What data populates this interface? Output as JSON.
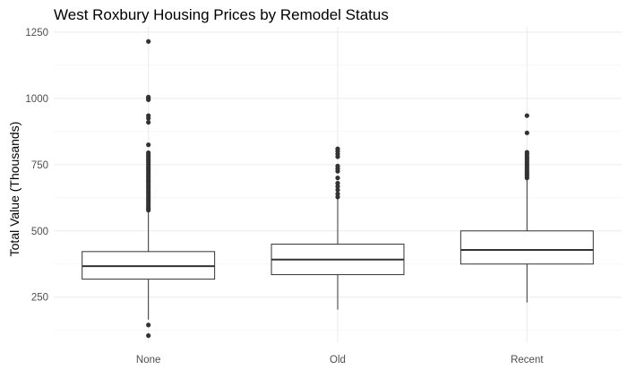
{
  "chart_data": {
    "type": "boxplot",
    "title": "West Roxbury Housing Prices by Remodel Status",
    "xlabel": "",
    "ylabel": "Total Value (Thousands)",
    "ylim": [
      80,
      1270
    ],
    "yticks": [
      250,
      500,
      750,
      1000,
      1250
    ],
    "grid": true,
    "legend": "none",
    "categories": [
      "None",
      "Old",
      "Recent"
    ],
    "boxes": [
      {
        "category": "None",
        "whisker_low": 165,
        "q1": 318,
        "median": 367,
        "q3": 422,
        "whisker_high": 574,
        "outliers": [
          105,
          145,
          578,
          585,
          592,
          600,
          608,
          615,
          622,
          630,
          638,
          645,
          652,
          660,
          668,
          675,
          683,
          690,
          697,
          705,
          712,
          720,
          728,
          735,
          742,
          750,
          758,
          765,
          772,
          780,
          787,
          795,
          825,
          910,
          925,
          935,
          995,
          1000,
          1005,
          1215
        ]
      },
      {
        "category": "Old",
        "whisker_low": 203,
        "q1": 335,
        "median": 392,
        "q3": 450,
        "whisker_high": 622,
        "outliers": [
          628,
          640,
          655,
          668,
          680,
          700,
          725,
          735,
          745,
          780,
          790,
          800,
          810
        ]
      },
      {
        "category": "Recent",
        "whisker_low": 230,
        "q1": 375,
        "median": 428,
        "q3": 500,
        "whisker_high": 695,
        "outliers": [
          700,
          708,
          715,
          722,
          730,
          738,
          745,
          752,
          760,
          768,
          775,
          782,
          790,
          797,
          870,
          935
        ]
      }
    ]
  }
}
